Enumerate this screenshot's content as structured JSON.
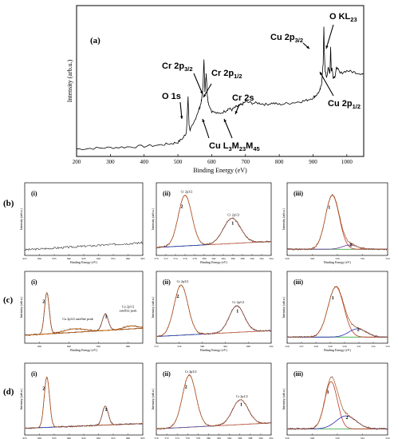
{
  "figure": {
    "panel_a": "(a)",
    "panel_b": "(b)",
    "panel_c": "(c)",
    "panel_d": "(d)"
  },
  "chart_data": [
    {
      "id": "a",
      "type": "line",
      "xlabel": "Binding Energy (eV)",
      "ylabel": "Intensity (arb.u.)",
      "xlim": [
        200,
        1050
      ],
      "xticks": [
        200,
        300,
        400,
        500,
        600,
        700,
        800,
        900,
        1000
      ],
      "ylim": [
        0,
        1
      ],
      "series": [
        {
          "x": [
            200,
            250,
            300,
            350,
            400,
            450,
            480,
            500,
            515,
            525,
            530,
            533,
            536,
            545,
            560,
            565,
            570,
            574,
            577,
            580,
            584,
            587,
            590,
            600,
            620,
            640,
            650,
            660,
            670,
            680,
            690,
            700,
            720,
            740,
            760,
            780,
            800,
            830,
            860,
            880,
            900,
            910,
            920,
            925,
            930,
            932,
            934,
            936,
            940,
            945,
            950,
            952,
            954,
            956,
            960,
            965,
            970,
            980,
            1000,
            1020,
            1040,
            1050
          ],
          "y": [
            0.02,
            0.025,
            0.03,
            0.035,
            0.04,
            0.05,
            0.06,
            0.07,
            0.1,
            0.14,
            0.4,
            0.2,
            0.16,
            0.2,
            0.3,
            0.33,
            0.38,
            0.47,
            0.68,
            0.45,
            0.58,
            0.42,
            0.36,
            0.3,
            0.28,
            0.3,
            0.32,
            0.31,
            0.33,
            0.34,
            0.35,
            0.37,
            0.36,
            0.36,
            0.35,
            0.36,
            0.35,
            0.36,
            0.37,
            0.38,
            0.4,
            0.42,
            0.45,
            0.5,
            0.65,
            0.92,
            0.7,
            0.6,
            0.55,
            0.62,
            0.58,
            0.78,
            0.6,
            0.62,
            0.55,
            0.56,
            0.63,
            0.58,
            0.6,
            0.59,
            0.58,
            0.57
          ]
        }
      ],
      "annotations": [
        {
          "text": "O 1s",
          "x": 530
        },
        {
          "text": "Cr 2p",
          "sub": "3/2",
          "x": 577
        },
        {
          "text": "Cr 2p",
          "sub": "1/2",
          "x": 587
        },
        {
          "text": "Cr 2s",
          "x": 695
        },
        {
          "text": "Cu L",
          "sub": "3",
          "text2": "M",
          "sub2": "23",
          "text3": "M",
          "sub3": "45",
          "x": 640
        },
        {
          "text": "Cu 2p",
          "sub": "3/2",
          "x": 932
        },
        {
          "text": "O KL",
          "sub": "23",
          "x": 978
        },
        {
          "text": "Cu 2p",
          "sub": "1/2",
          "x": 952
        }
      ]
    },
    {
      "id": "b-i",
      "type": "line",
      "label": "(i)",
      "xlabel": "Binding Energy (eV)",
      "ylabel": "Intensity (arb.u.)",
      "xlim": [
        925,
        965
      ],
      "xticks": [
        925,
        930,
        935,
        940,
        945,
        950,
        955,
        960,
        965
      ]
    },
    {
      "id": "b-ii",
      "type": "line",
      "label": "(ii)",
      "xlabel": "Binding Energy (eV)",
      "ylabel": "Intensity (arb.u.)",
      "xlim": [
        570,
        594
      ],
      "xticks": [
        570,
        572,
        574,
        576,
        578,
        580,
        582,
        584,
        586,
        588,
        590,
        592,
        594
      ],
      "peak_labels": [
        "Cr 2p3/2",
        "Cr 2p1/2"
      ],
      "peak_numbers": [
        "2",
        "1"
      ]
    },
    {
      "id": "b-iii",
      "type": "line",
      "label": "(iii)",
      "xlabel": "Binding Energy (eV)",
      "ylabel": "Intensity (arb.u.)",
      "xlim": [
        526,
        534
      ],
      "xticks": [
        526,
        528,
        530,
        532,
        534
      ],
      "peak_numbers": [
        "1",
        "2"
      ]
    },
    {
      "id": "c-i",
      "type": "line",
      "label": "(i)",
      "xlabel": "Binding Energy (eV)",
      "ylabel": "Intensity (arb.u.)",
      "xlim": [
        925,
        965
      ],
      "xticks": [
        930,
        940,
        950,
        960
      ],
      "peak_numbers": [
        "2",
        "1"
      ],
      "notes": [
        "Cu 2p3/2 satellite peak",
        "Cu 2p1/2",
        "satellite peak"
      ]
    },
    {
      "id": "c-ii",
      "type": "line",
      "label": "(ii)",
      "xlabel": "Binding Energy (eV)",
      "ylabel": "Intensity (arb.u.)",
      "xlim": [
        572,
        592
      ],
      "xticks": [
        572,
        576,
        580,
        584,
        588,
        592
      ],
      "peak_labels": [
        "Cr 2p3/2",
        "Cr 2p1/2"
      ],
      "peak_numbers": [
        "2",
        "1"
      ]
    },
    {
      "id": "c-iii",
      "type": "line",
      "label": "(iii)",
      "xlabel": "Binding Energy (eV)",
      "ylabel": "Intensity (arb.u.)",
      "xlim": [
        526,
        533
      ],
      "xticks": [
        526,
        527,
        528,
        529,
        530,
        531,
        532,
        533
      ],
      "peak_numbers": [
        "1",
        "2"
      ]
    },
    {
      "id": "d-i",
      "type": "line",
      "label": "(i)",
      "xlabel": "Binding Energy (eV)",
      "ylabel": "Intensity (arb.u.)",
      "xlim": [
        925,
        965
      ],
      "xticks": [
        925,
        930,
        935,
        940,
        945,
        950,
        955,
        960,
        965
      ],
      "peak_numbers": [
        "2",
        "1"
      ]
    },
    {
      "id": "d-ii",
      "type": "line",
      "label": "(ii)",
      "xlabel": "Binding Energy (eV)",
      "ylabel": "Intensity (arb.u.)",
      "xlim": [
        570,
        592
      ],
      "xticks": [
        570,
        572,
        574,
        576,
        578,
        580,
        582,
        584,
        586,
        588,
        590,
        592
      ],
      "peak_labels": [
        "Cr 2p3/2",
        "Cr 2p1/2"
      ],
      "peak_numbers": [
        "2",
        "1"
      ]
    },
    {
      "id": "d-iii",
      "type": "line",
      "label": "(iii)",
      "xlabel": "Binding Energy (eV)",
      "ylabel": "Intensity (arb.u.)",
      "xlim": [
        526,
        534
      ],
      "xticks": [
        526,
        528,
        530,
        532,
        534
      ],
      "peak_numbers": [
        "1",
        "2"
      ]
    }
  ]
}
